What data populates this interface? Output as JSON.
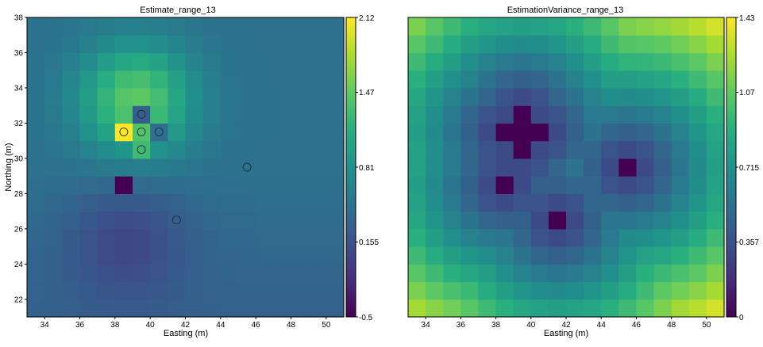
{
  "chart_data": [
    {
      "type": "heatmap",
      "title": "Estimate_range_13",
      "xlabel": "Easting (m)",
      "ylabel": "Northing (m)",
      "xlim": [
        33,
        51
      ],
      "ylim": [
        21,
        38
      ],
      "xticks": [
        "34",
        "36",
        "38",
        "40",
        "42",
        "44",
        "46",
        "48",
        "50"
      ],
      "yticks": [
        "22",
        "24",
        "26",
        "28",
        "30",
        "32",
        "34",
        "36",
        "38"
      ],
      "colorbar": {
        "ticks": [
          "2.12",
          "1.47",
          "0.81",
          "0.155",
          "-0.5"
        ],
        "min": -0.5,
        "max": 2.12
      },
      "colormap": "viridis",
      "samples": [
        {
          "x": 39.5,
          "y": 32.5
        },
        {
          "x": 38.5,
          "y": 31.5
        },
        {
          "x": 39.5,
          "y": 31.5
        },
        {
          "x": 40.5,
          "y": 31.5
        },
        {
          "x": 39.5,
          "y": 30.5
        },
        {
          "x": 45.5,
          "y": 29.5
        },
        {
          "x": 41.5,
          "y": 26.5
        }
      ]
    },
    {
      "type": "heatmap",
      "title": "EstimationVariance_range_13",
      "xlabel": "Easting (m)",
      "ylabel": "",
      "xlim": [
        33,
        51
      ],
      "ylim": [
        21,
        38
      ],
      "xticks": [
        "34",
        "36",
        "38",
        "40",
        "42",
        "44",
        "46",
        "48",
        "50"
      ],
      "colorbar": {
        "ticks": [
          "1.43",
          "1.07",
          "0.715",
          "0.357",
          "0"
        ],
        "min": 0,
        "max": 1.43
      },
      "colormap": "viridis",
      "zero_cells": [
        {
          "x": 39.5,
          "y": 32.5
        },
        {
          "x": 38.5,
          "y": 31.5
        },
        {
          "x": 39.5,
          "y": 31.5
        },
        {
          "x": 40.5,
          "y": 31.5
        },
        {
          "x": 39.5,
          "y": 30.5
        },
        {
          "x": 45.5,
          "y": 29.5
        },
        {
          "x": 38.5,
          "y": 28.5
        },
        {
          "x": 41.5,
          "y": 26.5
        }
      ]
    }
  ]
}
